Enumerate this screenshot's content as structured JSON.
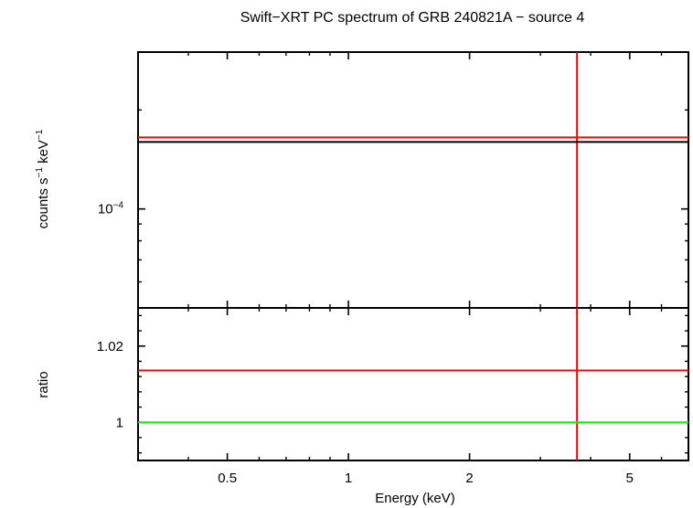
{
  "chart_data": [
    {
      "type": "line",
      "title": "Swift−XRT PC spectrum of GRB 240821A − source 4",
      "ylabel_parts": {
        "main": "counts s",
        "exp1": "−1",
        "mid": " keV",
        "exp2": "−1"
      },
      "xscale": "log",
      "yscale": "log",
      "xlim": [
        0.3,
        7
      ],
      "ylim": [
        5e-05,
        0.0003
      ],
      "ytick_labels": [
        {
          "base": "10",
          "exp": "−4"
        }
      ],
      "y_major_ticks": [
        0.0001
      ],
      "series": [
        {
          "color": "#ff0000",
          "segments": [
            {
              "x": [
                0.3,
                7
              ],
              "y": [
                0.000165,
                0.000165
              ]
            }
          ],
          "vlines": [
            3.7
          ]
        }
      ],
      "grid": false
    },
    {
      "type": "line",
      "xlabel": "Energy (keV)",
      "ylabel": "ratio",
      "xscale": "log",
      "xlim": [
        0.3,
        7
      ],
      "ylim": [
        0.99,
        1.03
      ],
      "x_ticks": [
        0.5,
        1,
        2,
        5
      ],
      "x_tick_labels": [
        "0.5",
        "1",
        "2",
        "5"
      ],
      "y_ticks": [
        1,
        1.02
      ],
      "y_tick_labels": [
        "1",
        "1.02"
      ],
      "series": [
        {
          "color": "#ff0000",
          "segments": [
            {
              "x": [
                0.3,
                7
              ],
              "y": [
                1.0136,
                1.0136
              ]
            }
          ],
          "vlines": [
            3.7
          ]
        },
        {
          "color": "#00ff00",
          "segments": [
            {
              "x": [
                0.3,
                7
              ],
              "y": [
                1.0,
                1.0
              ]
            }
          ]
        }
      ],
      "grid": false
    }
  ]
}
